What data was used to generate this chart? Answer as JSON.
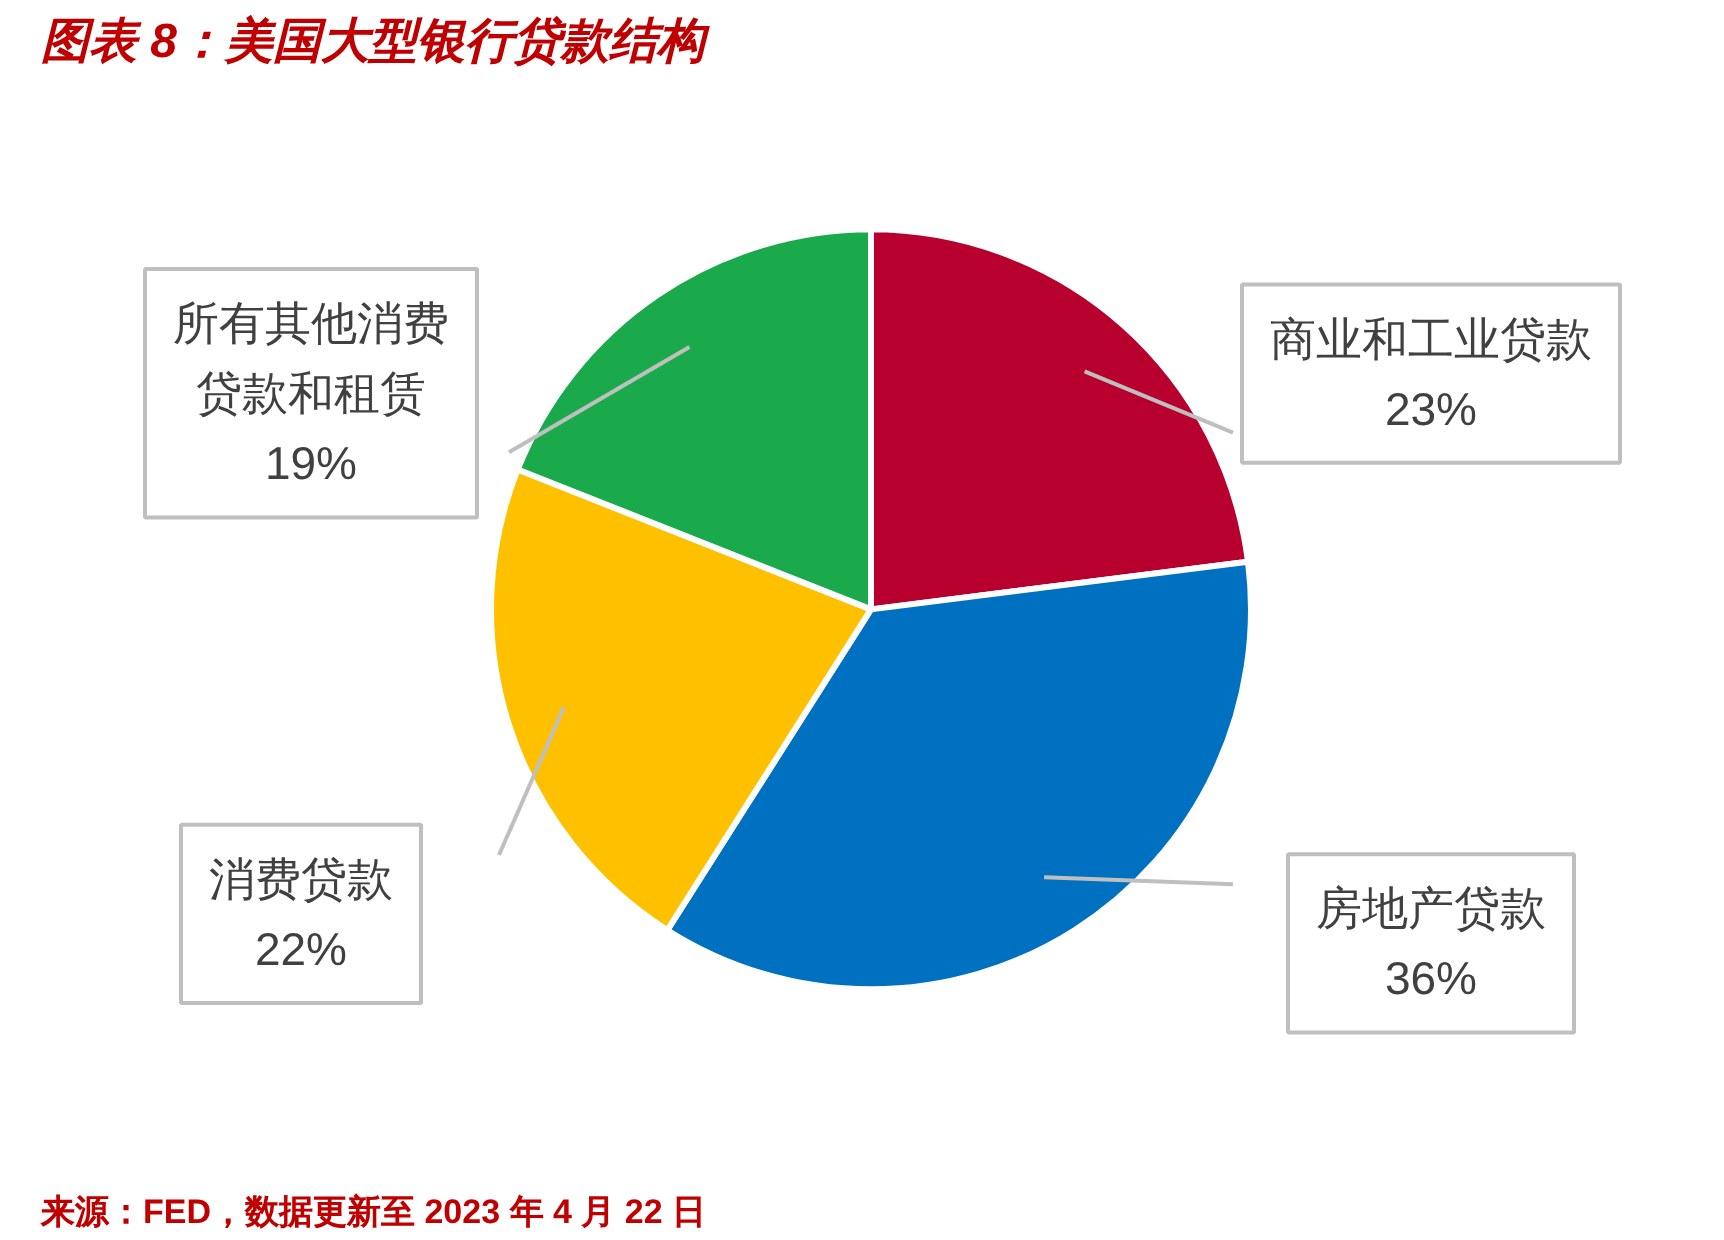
{
  "chart_data": {
    "type": "pie",
    "title": "图表 8：美国大型银行贷款结构",
    "categories": [
      "商业和工业贷款",
      "房地产贷款",
      "消费贷款",
      "所有其他消费贷款和租赁"
    ],
    "values": [
      23,
      36,
      22,
      19
    ],
    "colors": [
      "#b8002e",
      "#0070c0",
      "#ffc000",
      "#1aaa4b"
    ],
    "value_labels": [
      "23%",
      "36%",
      "22%",
      "19%"
    ],
    "annotations": [
      "来源：FED，数据更新至 2023 年 4 月 22 日"
    ]
  }
}
